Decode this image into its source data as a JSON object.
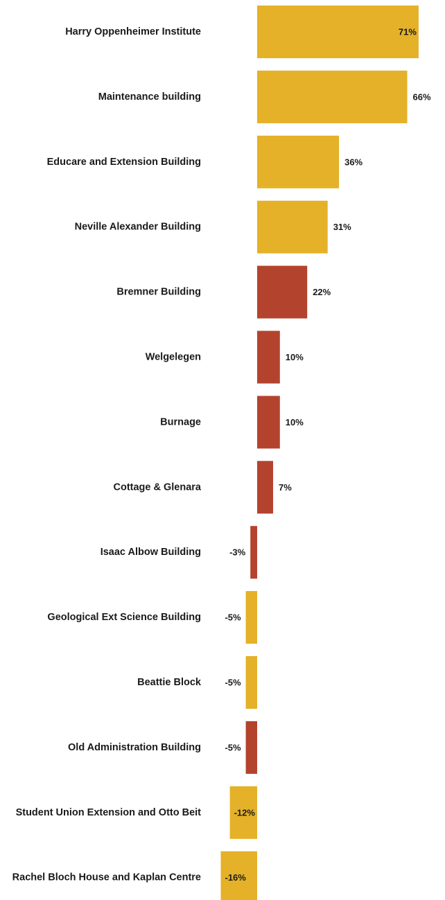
{
  "chart_data": {
    "type": "bar",
    "orientation": "horizontal",
    "categories": [
      "Harry Oppenheimer Institute",
      "Maintenance building",
      "Educare and Extension Building",
      "Neville Alexander Building",
      "Bremner Building",
      "Welgelegen",
      "Burnage",
      "Cottage & Glenara",
      "Isaac Albow Building",
      "Geological Ext Science Building",
      "Beattie Block",
      "Old Administration Building",
      "Student Union Extension and Otto Beit",
      "Rachel Bloch House and Kaplan Centre"
    ],
    "values": [
      71,
      66,
      36,
      31,
      22,
      10,
      10,
      7,
      -3,
      -5,
      -5,
      -5,
      -12,
      -16
    ],
    "value_labels": [
      "71%",
      "66%",
      "36%",
      "31%",
      "22%",
      "10%",
      "10%",
      "7%",
      "-3%",
      "-5%",
      "-5%",
      "-5%",
      "-12%",
      "-16%"
    ],
    "bar_colors": [
      "#E4B128",
      "#E4B128",
      "#E4B128",
      "#E4B128",
      "#B4432E",
      "#B4432E",
      "#B4432E",
      "#B4432E",
      "#B4432E",
      "#E4B128",
      "#E4B128",
      "#B4432E",
      "#E4B128",
      "#E4B128"
    ],
    "title": "",
    "xlabel": "",
    "ylabel": "",
    "grid": false,
    "legend": "none"
  }
}
